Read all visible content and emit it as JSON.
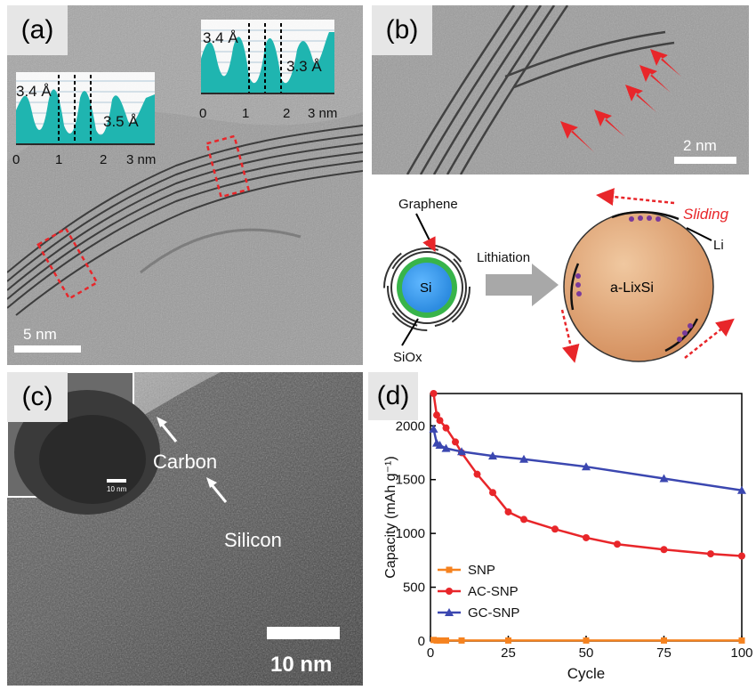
{
  "panels": {
    "a": {
      "label": "(a)",
      "scale_bar": "5 nm",
      "inset_left": {
        "spacing_left": "3.4 Å",
        "spacing_right": "3.5 Å",
        "ticks": [
          "0",
          "1",
          "2",
          "3 nm"
        ]
      },
      "inset_right": {
        "spacing_left": "3.4 Å",
        "spacing_right": "3.3 Å",
        "ticks": [
          "0",
          "1",
          "2",
          "3 nm"
        ]
      }
    },
    "b": {
      "label": "(b)",
      "scale_bar": "2 nm",
      "schematic": {
        "graphene": "Graphene",
        "lithiation": "Lithiation",
        "si": "Si",
        "siox": "SiOx",
        "alisi": "a-LixSi",
        "sliding": "Sliding",
        "li": "Li"
      }
    },
    "c": {
      "label": "(c)",
      "scale_bar": "10 nm",
      "inset_scale_bar": "10 nm",
      "carbon": "Carbon",
      "silicon": "Silicon"
    },
    "d": {
      "label": "(d)"
    }
  },
  "colors": {
    "cyan_profile": "#1fb5b0",
    "red_marker": "#e8262a",
    "snp": "#f5821f",
    "ac_snp": "#e8262a",
    "gc_snp": "#3b47b0",
    "particle_core": "#2c8be0",
    "particle_shell": "#38b44a",
    "alisi_fill": "#d59160"
  },
  "chart_data": {
    "type": "line",
    "xlabel": "Cycle",
    "ylabel": "Capacity (mAh g⁻¹)",
    "xlim": [
      0,
      100
    ],
    "ylim": [
      0,
      2300
    ],
    "x_ticks": [
      0,
      25,
      50,
      75,
      100
    ],
    "y_ticks": [
      0,
      500,
      1000,
      1500,
      2000
    ],
    "legend_position": "bottom-left",
    "series": [
      {
        "name": "SNP",
        "color": "#f5821f",
        "marker": "square",
        "x": [
          1,
          2,
          3,
          5,
          10,
          25,
          50,
          75,
          100
        ],
        "values": [
          10,
          5,
          5,
          5,
          5,
          5,
          5,
          5,
          5
        ]
      },
      {
        "name": "AC-SNP",
        "color": "#e8262a",
        "marker": "circle",
        "x": [
          1,
          2,
          3,
          5,
          8,
          10,
          15,
          20,
          25,
          30,
          40,
          50,
          60,
          75,
          90,
          100
        ],
        "values": [
          2300,
          2100,
          2050,
          1980,
          1850,
          1750,
          1550,
          1380,
          1200,
          1130,
          1040,
          960,
          900,
          850,
          810,
          790
        ]
      },
      {
        "name": "GC-SNP",
        "color": "#3b47b0",
        "marker": "triangle",
        "x": [
          1,
          2,
          3,
          5,
          10,
          20,
          30,
          50,
          75,
          100
        ],
        "values": [
          1970,
          1840,
          1820,
          1790,
          1760,
          1720,
          1690,
          1620,
          1510,
          1400
        ]
      }
    ]
  }
}
